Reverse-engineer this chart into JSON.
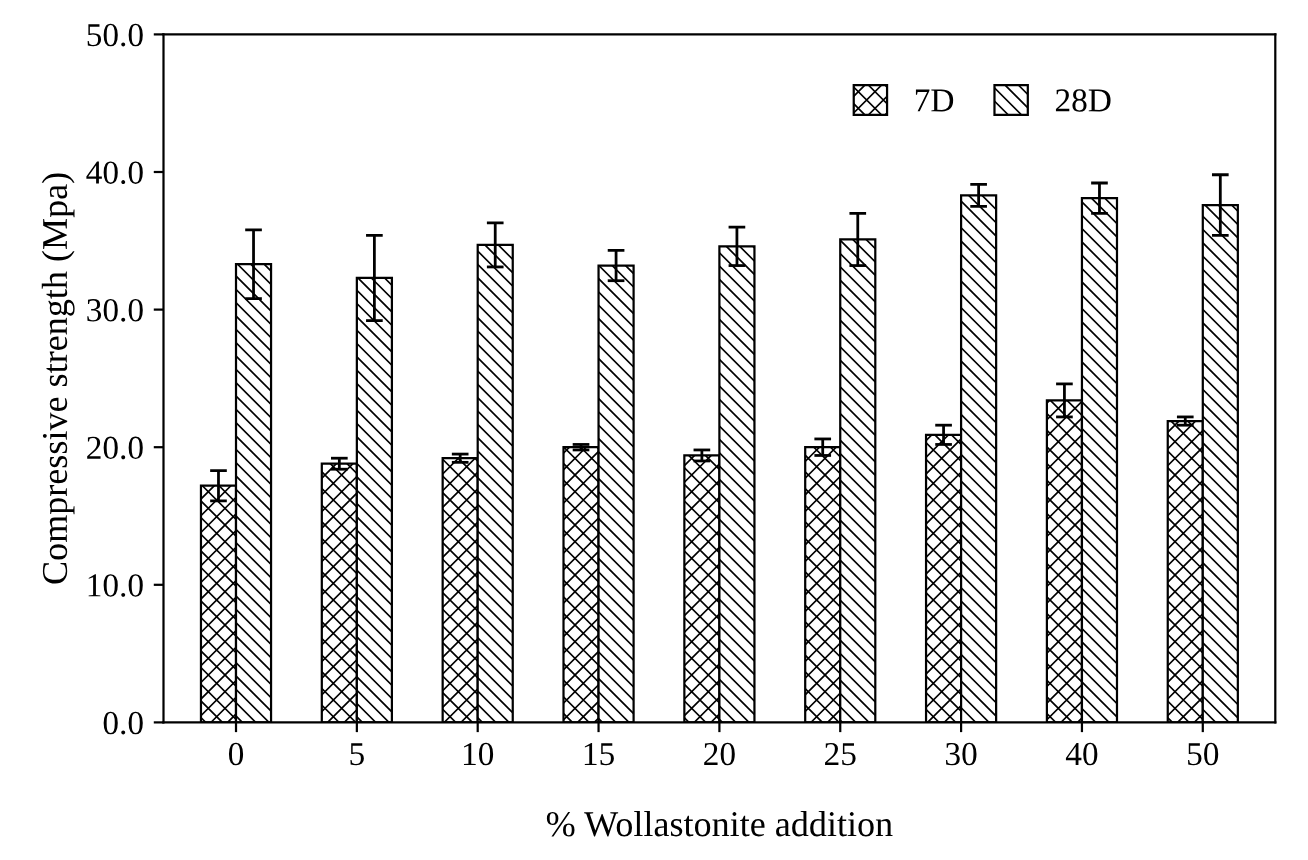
{
  "chart_data": {
    "type": "bar",
    "xlabel": "% Wollastonite addition",
    "ylabel": "Compressive strength (Mpa)",
    "categories": [
      "0",
      "5",
      "10",
      "15",
      "20",
      "25",
      "30",
      "40",
      "50"
    ],
    "series": [
      {
        "name": "7D",
        "color": "#000000",
        "values": [
          17.2,
          18.8,
          19.2,
          20.0,
          19.4,
          20.0,
          20.9,
          23.4,
          21.9
        ],
        "errors": [
          1.1,
          0.4,
          0.3,
          0.2,
          0.4,
          0.6,
          0.7,
          1.2,
          0.3
        ]
      },
      {
        "name": "28D",
        "color": "#000000",
        "values": [
          33.3,
          32.3,
          34.7,
          33.2,
          34.6,
          35.1,
          38.3,
          38.1,
          37.6
        ],
        "errors": [
          2.5,
          3.1,
          1.6,
          1.1,
          1.4,
          1.9,
          0.8,
          1.1,
          2.2
        ]
      }
    ],
    "ylim": [
      0,
      50
    ],
    "yticks": [
      {
        "value": 0,
        "label": "0.0"
      },
      {
        "value": 10,
        "label": "10.0"
      },
      {
        "value": 20,
        "label": "20.0"
      },
      {
        "value": 30,
        "label": "30.0"
      },
      {
        "value": 40,
        "label": "40.0"
      },
      {
        "value": 50,
        "label": "50.0"
      }
    ],
    "legend": "top right",
    "grid": false
  }
}
